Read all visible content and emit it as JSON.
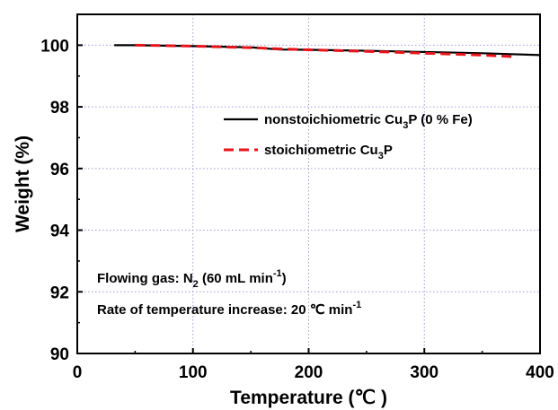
{
  "chart_data": {
    "type": "line",
    "xlabel": "Temperature (℃ )",
    "ylabel": "Weight (%)",
    "xlim": [
      0,
      400
    ],
    "ylim": [
      90,
      101
    ],
    "x_ticks": [
      0,
      100,
      200,
      300,
      400
    ],
    "x_tick_labels": [
      "0",
      "100",
      "200",
      "300",
      "400"
    ],
    "y_ticks": [
      90,
      92,
      94,
      96,
      98,
      100
    ],
    "y_tick_labels": [
      "90",
      "92",
      "94",
      "96",
      "98",
      "100"
    ],
    "grid": true,
    "legend_position": "upper-right",
    "series": [
      {
        "name": "nonstoichiometric Cu3P (0 % Fe)",
        "legend": {
          "base": "nonstoichiometric Cu",
          "sub": "3",
          "tail": "P (0 % Fe)"
        },
        "color": "#000000",
        "style": "solid",
        "x": [
          32,
          50,
          100,
          150,
          175,
          200,
          250,
          300,
          350,
          400
        ],
        "y": [
          100.0,
          100.0,
          99.97,
          99.93,
          99.86,
          99.85,
          99.82,
          99.78,
          99.74,
          99.68
        ]
      },
      {
        "name": "stoichiometric Cu3P",
        "legend": {
          "base": "stoichiometric Cu",
          "sub": "3",
          "tail": "P"
        },
        "color": "#e8141b",
        "style": "dashed",
        "x": [
          50,
          100,
          150,
          175,
          200,
          250,
          300,
          350,
          380
        ],
        "y": [
          100.0,
          99.97,
          99.92,
          99.88,
          99.85,
          99.8,
          99.74,
          99.68,
          99.62
        ]
      }
    ],
    "annotations": [
      {
        "base": "Flowing gas: N",
        "sub": "2",
        "tail": " (60 mL min",
        "sup": "-1",
        "end": ")"
      },
      {
        "base": "Rate of temperature increase: 20 ℃ min",
        "sub": "",
        "tail": "",
        "sup": "-1",
        "end": ""
      }
    ]
  }
}
